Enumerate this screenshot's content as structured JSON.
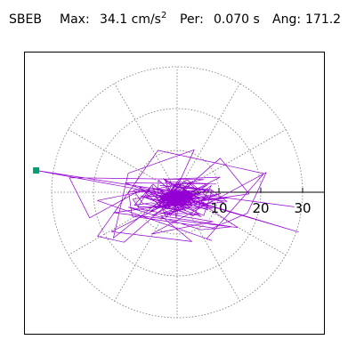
{
  "header": {
    "station": "SBEB",
    "max_label": "Max:",
    "max_value": "34.1 cm/s",
    "max_exponent": "2",
    "per_label": "Per:",
    "per_value": "0.070 s",
    "ang_label": "Ang:",
    "ang_value": "171.2"
  },
  "chart_data": {
    "type": "polar-hodogram",
    "radial_ticks": [
      {
        "value": 10,
        "label": "10"
      },
      {
        "value": 20,
        "label": "20"
      },
      {
        "value": 30,
        "label": "30"
      }
    ],
    "rings": [
      10,
      20,
      30
    ],
    "radial_spokes_deg": [
      0,
      30,
      60,
      90,
      120,
      150,
      180,
      210,
      240,
      270,
      300,
      330
    ],
    "grid": true,
    "max_amplitude": 34.1,
    "max_angle_deg": 171.2,
    "trace_color": "#9400d3",
    "marker_color": "#009e73",
    "trace": {
      "seed": 7,
      "core_points": 220,
      "core_radius": 3.5,
      "mid_points": 90,
      "mid_radius": 9,
      "wide_points": 40,
      "wide_radius": 22
    }
  }
}
